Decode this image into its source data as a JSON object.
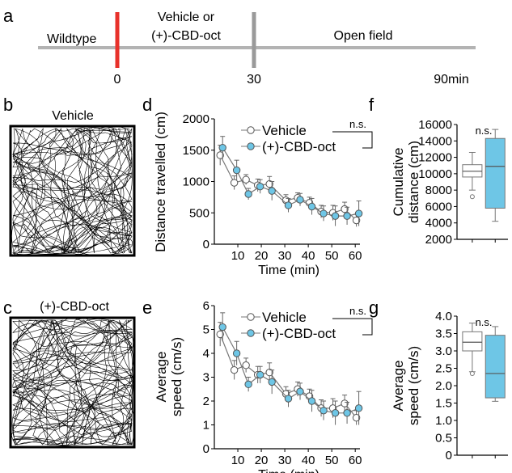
{
  "panels": {
    "a": "a",
    "b": "b",
    "c": "c",
    "d": "d",
    "e": "e",
    "f": "f",
    "g": "g"
  },
  "timeline": {
    "segments": [
      "Wildtype",
      "Vehicle or",
      "(+)-CBD-oct",
      "Open field"
    ],
    "ticks": [
      "0",
      "30",
      "90min"
    ],
    "marker_colors": {
      "start": "#e8322b",
      "switch": "#9a9a9a",
      "line": "#b3b3b3"
    }
  },
  "trajectories": {
    "vehicle_label": "Vehicle",
    "cbd_label": "(+)-CBD-oct"
  },
  "colors": {
    "vehicle": "#ffffff",
    "cbd": "#6ec6e6",
    "stroke": "#555555"
  },
  "chart_data": [
    {
      "panel": "d",
      "type": "line",
      "ylabel": "Distance travelled (cm)",
      "xlabel": "Time (min)",
      "xlim": [
        0,
        62
      ],
      "ylim": [
        0,
        2000
      ],
      "xticks": [
        10,
        20,
        30,
        40,
        50,
        60
      ],
      "yticks": [
        0,
        500,
        1000,
        1500,
        2000
      ],
      "x": [
        3,
        9,
        14,
        19,
        24,
        31,
        36,
        41,
        46,
        51,
        56,
        61
      ],
      "series": [
        {
          "name": "Vehicle",
          "values": [
            1420,
            980,
            1030,
            940,
            960,
            700,
            740,
            660,
            520,
            500,
            560,
            380
          ],
          "err": [
            160,
            110,
            80,
            100,
            120,
            90,
            80,
            90,
            100,
            120,
            110,
            100
          ]
        },
        {
          "name": "(+)-CBD-oct",
          "values": [
            1540,
            1180,
            800,
            920,
            850,
            620,
            710,
            600,
            490,
            450,
            450,
            490
          ],
          "err": [
            180,
            160,
            90,
            110,
            150,
            110,
            100,
            130,
            120,
            160,
            140,
            200
          ]
        }
      ],
      "legend": "top-right",
      "annotation": "n.s."
    },
    {
      "panel": "e",
      "type": "line",
      "ylabel": "Average speed (cm/s)",
      "xlabel": "Time (min)",
      "xlim": [
        0,
        62
      ],
      "ylim": [
        0,
        6
      ],
      "xticks": [
        10,
        20,
        30,
        40,
        50,
        60
      ],
      "yticks": [
        0,
        1,
        2,
        3,
        4,
        5,
        6
      ],
      "x": [
        3,
        9,
        14,
        19,
        24,
        31,
        36,
        41,
        46,
        51,
        56,
        61
      ],
      "series": [
        {
          "name": "Vehicle",
          "values": [
            4.8,
            3.3,
            3.5,
            3.1,
            3.2,
            2.3,
            2.5,
            2.2,
            1.7,
            1.7,
            1.9,
            1.3
          ],
          "err": [
            0.5,
            0.4,
            0.3,
            0.35,
            0.4,
            0.3,
            0.3,
            0.3,
            0.35,
            0.4,
            0.35,
            0.3
          ]
        },
        {
          "name": "(+)-CBD-oct",
          "values": [
            5.1,
            4.0,
            2.7,
            3.1,
            2.8,
            2.1,
            2.4,
            2.0,
            1.6,
            1.5,
            1.5,
            1.7
          ],
          "err": [
            0.6,
            0.5,
            0.3,
            0.35,
            0.5,
            0.35,
            0.35,
            0.45,
            0.4,
            0.5,
            0.45,
            0.7
          ]
        }
      ],
      "legend": "top-right",
      "annotation": "n.s."
    },
    {
      "panel": "f",
      "type": "box",
      "ylabel": "Cumulative distance (cm)",
      "ylabel_lines": [
        "Cumulative",
        "distance (cm)"
      ],
      "ylim": [
        2000,
        16000
      ],
      "yticks": [
        2000,
        4000,
        6000,
        8000,
        10000,
        12000,
        14000,
        16000
      ],
      "boxes": [
        {
          "name": "Vehicle",
          "min": 8000,
          "q1": 9600,
          "median": 10300,
          "q3": 11100,
          "max": 12600,
          "outliers": [
            7200
          ]
        },
        {
          "name": "(+)-CBD-oct",
          "min": 4200,
          "q1": 5800,
          "median": 10900,
          "q3": 14300,
          "max": 15400,
          "outliers": []
        }
      ],
      "annotation": "n.s."
    },
    {
      "panel": "g",
      "type": "box",
      "ylabel": "Average speed (cm/s)",
      "ylabel_lines": [
        "Average",
        "speed (cm/s)"
      ],
      "ylim": [
        0,
        4.0
      ],
      "yticks": [
        0,
        0.5,
        1.0,
        1.5,
        2.0,
        2.5,
        3.0,
        3.5,
        4.0
      ],
      "ytick_labels": [
        "0",
        "0.5",
        "1.0",
        "1.5",
        "2.0",
        "2.5",
        "3.0",
        "3.5",
        "4.0"
      ],
      "boxes": [
        {
          "name": "Vehicle",
          "min": 2.4,
          "q1": 3.0,
          "median": 3.25,
          "q3": 3.55,
          "max": 3.8,
          "outliers": [
            2.35
          ]
        },
        {
          "name": "(+)-CBD-oct",
          "min": 1.55,
          "q1": 1.65,
          "median": 2.35,
          "q3": 3.45,
          "max": 3.7,
          "outliers": []
        }
      ],
      "annotation": "n.s."
    }
  ]
}
